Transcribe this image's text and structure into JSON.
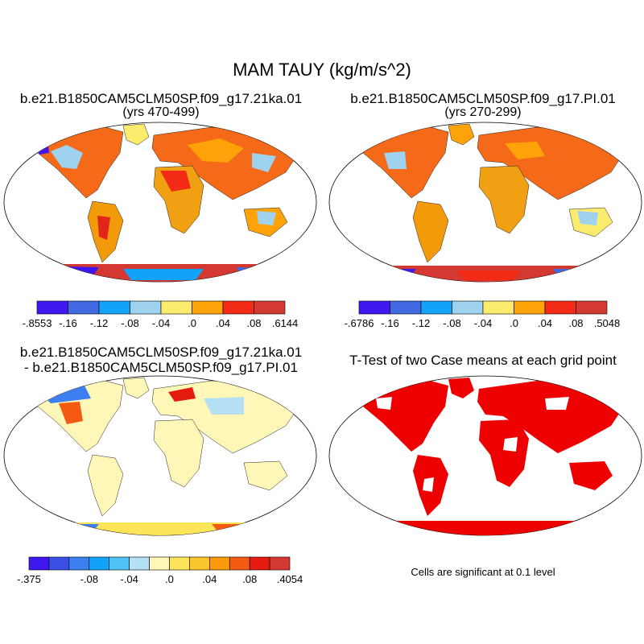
{
  "title": "MAM TAUY (kg/m/s^2)",
  "panels": {
    "top_left": {
      "title": "b.e21.B1850CAM5CLM50SP.f09_g17.21ka.01",
      "subtitle": "(yrs 470-499)",
      "colorbar": {
        "colors": [
          "#3f18f0",
          "#4169e1",
          "#12a2f7",
          "#9fd2ee",
          "#fbec6e",
          "#fea20a",
          "#f32a16",
          "#d33930"
        ],
        "tick_labels": [
          "-.8553",
          "-.16",
          "-.12",
          "-.08",
          "-.04",
          ".0",
          ".04",
          ".08",
          ".6144"
        ]
      }
    },
    "top_right": {
      "title": "b.e21.B1850CAM5CLM50SP.f09_g17.PI.01",
      "subtitle": "(yrs 270-299)",
      "colorbar": {
        "colors": [
          "#3f18f0",
          "#4169e1",
          "#12a2f7",
          "#9fd2ee",
          "#fbec6e",
          "#fea20a",
          "#f32a16",
          "#d33930"
        ],
        "tick_labels": [
          "-.6786",
          "-.16",
          "-.12",
          "-.08",
          "-.04",
          ".0",
          ".04",
          ".08",
          ".5048"
        ]
      }
    },
    "bottom_left": {
      "title_line1": "b.e21.B1850CAM5CLM50SP.f09_g17.21ka.01",
      "title_line2": "- b.e21.B1850CAM5CLM50SP.f09_g17.PI.01",
      "colorbar": {
        "colors": [
          "#3f18f0",
          "#3a4fe6",
          "#3d7ff0",
          "#12a2f7",
          "#4fc3f7",
          "#b5e0f3",
          "#fff7b8",
          "#fde55a",
          "#fbc62c",
          "#fb9a0a",
          "#f55a12",
          "#e51b10",
          "#d33930"
        ],
        "tick_labels": [
          "-.375",
          "-.08",
          "-.04",
          ".0",
          ".04",
          ".08",
          ".4054"
        ]
      }
    },
    "bottom_right": {
      "title": "T-Test of two Case means at each grid point",
      "note": "Cells are significant at 0.1 level",
      "fill_color": "#ee0000"
    }
  }
}
